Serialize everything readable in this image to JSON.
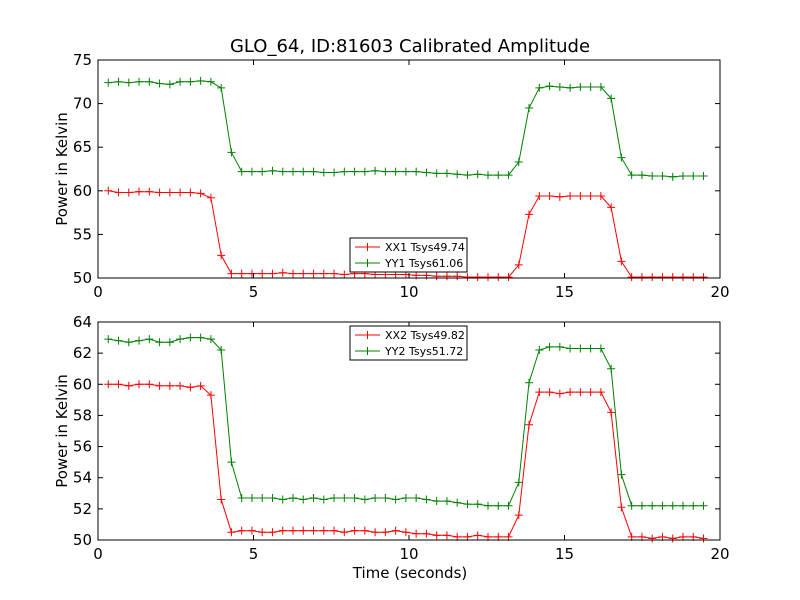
{
  "title": "GLO_64, ID:81603 Calibrated Amplitude",
  "xlabel": "Time (seconds)",
  "colors": {
    "red": "#ff0000",
    "green": "#008000"
  },
  "chart_data": [
    {
      "type": "line",
      "ylabel": "Power in Kelvin",
      "xlim": [
        0,
        20
      ],
      "ylim": [
        50,
        75
      ],
      "xticks": [
        0,
        5,
        10,
        15,
        20
      ],
      "yticks": [
        50,
        55,
        60,
        65,
        70,
        75
      ],
      "legend_position": "lower-center",
      "x": [
        0.33,
        0.66,
        0.99,
        1.32,
        1.65,
        1.98,
        2.31,
        2.64,
        2.97,
        3.3,
        3.63,
        3.96,
        4.29,
        4.62,
        4.95,
        5.28,
        5.61,
        5.94,
        6.27,
        6.6,
        6.93,
        7.26,
        7.59,
        7.92,
        8.25,
        8.58,
        8.91,
        9.24,
        9.57,
        9.9,
        10.23,
        10.56,
        10.89,
        11.22,
        11.55,
        11.88,
        12.21,
        12.54,
        12.87,
        13.2,
        13.53,
        13.86,
        14.19,
        14.52,
        14.85,
        15.18,
        15.51,
        15.84,
        16.17,
        16.5,
        16.83,
        17.16,
        17.49,
        17.82,
        18.15,
        18.48,
        18.81,
        19.14,
        19.47
      ],
      "series": [
        {
          "name": "XX1 Tsys49.74",
          "color": "red",
          "values": [
            60.0,
            59.8,
            59.8,
            59.9,
            59.9,
            59.8,
            59.8,
            59.8,
            59.8,
            59.7,
            59.2,
            52.6,
            50.5,
            50.5,
            50.5,
            50.5,
            50.5,
            50.6,
            50.5,
            50.5,
            50.5,
            50.5,
            50.5,
            50.4,
            50.5,
            50.5,
            50.4,
            50.4,
            50.4,
            50.4,
            50.3,
            50.3,
            50.2,
            50.2,
            50.2,
            50.1,
            50.1,
            50.1,
            50.1,
            50.1,
            51.5,
            57.3,
            59.4,
            59.4,
            59.3,
            59.4,
            59.4,
            59.4,
            59.4,
            58.1,
            51.9,
            50.1,
            50.1,
            50.1,
            50.1,
            50.1,
            50.1,
            50.1,
            50.1
          ]
        },
        {
          "name": "YY1 Tsys61.06",
          "color": "green",
          "values": [
            72.4,
            72.5,
            72.4,
            72.5,
            72.5,
            72.3,
            72.2,
            72.5,
            72.5,
            72.6,
            72.5,
            71.8,
            64.4,
            62.2,
            62.2,
            62.2,
            62.3,
            62.2,
            62.2,
            62.2,
            62.2,
            62.1,
            62.1,
            62.2,
            62.2,
            62.2,
            62.3,
            62.2,
            62.2,
            62.2,
            62.2,
            62.1,
            62.0,
            62.0,
            61.9,
            61.8,
            61.9,
            61.8,
            61.8,
            61.8,
            63.3,
            69.5,
            71.8,
            72.0,
            71.9,
            71.8,
            71.9,
            71.9,
            71.9,
            70.6,
            63.8,
            61.8,
            61.8,
            61.7,
            61.7,
            61.6,
            61.7,
            61.7,
            61.7
          ]
        }
      ]
    },
    {
      "type": "line",
      "ylabel": "Power in Kelvin",
      "xlim": [
        0,
        20
      ],
      "ylim": [
        50,
        64
      ],
      "xticks": [
        0,
        5,
        10,
        15,
        20
      ],
      "yticks": [
        50,
        52,
        54,
        56,
        58,
        60,
        62,
        64
      ],
      "legend_position": "upper-center",
      "x": [
        0.33,
        0.66,
        0.99,
        1.32,
        1.65,
        1.98,
        2.31,
        2.64,
        2.97,
        3.3,
        3.63,
        3.96,
        4.29,
        4.62,
        4.95,
        5.28,
        5.61,
        5.94,
        6.27,
        6.6,
        6.93,
        7.26,
        7.59,
        7.92,
        8.25,
        8.58,
        8.91,
        9.24,
        9.57,
        9.9,
        10.23,
        10.56,
        10.89,
        11.22,
        11.55,
        11.88,
        12.21,
        12.54,
        12.87,
        13.2,
        13.53,
        13.86,
        14.19,
        14.52,
        14.85,
        15.18,
        15.51,
        15.84,
        16.17,
        16.5,
        16.83,
        17.16,
        17.49,
        17.82,
        18.15,
        18.48,
        18.81,
        19.14,
        19.47
      ],
      "series": [
        {
          "name": "XX2 Tsys49.82",
          "color": "red",
          "values": [
            60.0,
            60.0,
            59.9,
            60.0,
            60.0,
            59.9,
            59.9,
            59.9,
            59.8,
            59.9,
            59.3,
            52.6,
            50.5,
            50.6,
            50.6,
            50.5,
            50.5,
            50.6,
            50.6,
            50.6,
            50.6,
            50.6,
            50.6,
            50.5,
            50.6,
            50.6,
            50.5,
            50.5,
            50.6,
            50.5,
            50.4,
            50.4,
            50.3,
            50.3,
            50.2,
            50.2,
            50.3,
            50.2,
            50.2,
            50.2,
            51.6,
            57.4,
            59.5,
            59.5,
            59.4,
            59.5,
            59.5,
            59.5,
            59.5,
            58.2,
            52.1,
            50.2,
            50.2,
            50.1,
            50.2,
            50.1,
            50.2,
            50.2,
            50.1
          ]
        },
        {
          "name": "YY2 Tsys51.72",
          "color": "green",
          "values": [
            62.9,
            62.8,
            62.7,
            62.8,
            62.9,
            62.7,
            62.7,
            62.9,
            63.0,
            63.0,
            62.9,
            62.2,
            55.0,
            52.7,
            52.7,
            52.7,
            52.7,
            52.6,
            52.7,
            52.6,
            52.7,
            52.6,
            52.7,
            52.7,
            52.7,
            52.6,
            52.7,
            52.7,
            52.6,
            52.7,
            52.7,
            52.6,
            52.5,
            52.5,
            52.4,
            52.3,
            52.3,
            52.2,
            52.2,
            52.2,
            53.7,
            60.1,
            62.2,
            62.4,
            62.4,
            62.3,
            62.3,
            62.3,
            62.3,
            61.0,
            54.2,
            52.2,
            52.2,
            52.2,
            52.2,
            52.2,
            52.2,
            52.2,
            52.2
          ]
        }
      ]
    }
  ]
}
